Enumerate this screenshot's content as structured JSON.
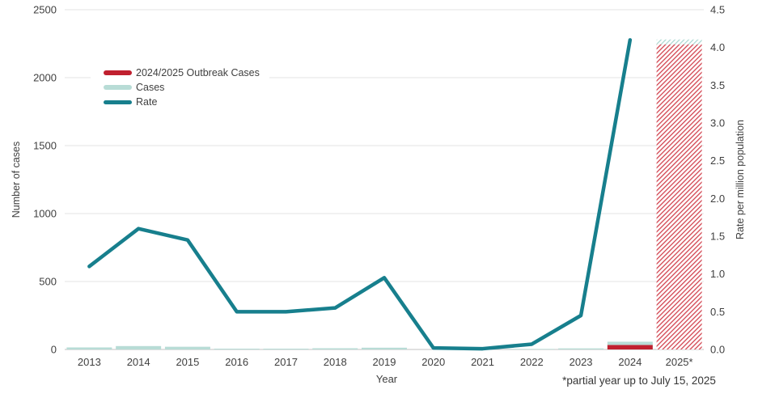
{
  "chart_data": {
    "type": "combo-bar-line",
    "x": [
      "2013",
      "2014",
      "2015",
      "2016",
      "2017",
      "2018",
      "2019",
      "2020",
      "2021",
      "2022",
      "2023",
      "2024",
      "2025*"
    ],
    "xlabel": "Year",
    "footnote": "*partial year up to July 15, 2025",
    "left_axis": {
      "title": "Number of cases",
      "ticks": [
        "0",
        "500",
        "1000",
        "1500",
        "2000",
        "2500"
      ],
      "min": 0,
      "max": 2500
    },
    "right_axis": {
      "title": "Rate per million population",
      "ticks": [
        "0.0",
        "0.5",
        "1.0",
        "1.5",
        "2.0",
        "2.5",
        "3.0",
        "3.5",
        "4.0",
        "4.5"
      ],
      "min": 0,
      "max": 4.5
    },
    "legend": [
      {
        "label": "2024/2025 Outbreak Cases",
        "color": "#c0202f",
        "type": "bar"
      },
      {
        "label": "Cases",
        "color": "#b8dcd6",
        "type": "bar"
      },
      {
        "label": "Rate",
        "color": "#177f8d",
        "type": "line"
      }
    ],
    "series": [
      {
        "name": "2024/2025 Outbreak Cases",
        "type": "bar",
        "axis": "left",
        "stack_order": 0,
        "values": [
          0,
          0,
          0,
          0,
          0,
          0,
          0,
          0,
          0,
          0,
          0,
          33,
          2245
        ]
      },
      {
        "name": "Cases",
        "type": "bar",
        "axis": "left",
        "stack_order": 1,
        "values": [
          15,
          25,
          20,
          6,
          6,
          9,
          13,
          2,
          1,
          4,
          8,
          24,
          36
        ]
      },
      {
        "name": "Rate",
        "type": "line",
        "axis": "right",
        "values": [
          1.1,
          1.6,
          1.45,
          0.5,
          0.5,
          0.55,
          0.95,
          0.02,
          0.01,
          0.07,
          0.45,
          4.1,
          null
        ]
      }
    ],
    "hatched_category": "2025*",
    "legend_position": "upper-left",
    "grid": "horizontal",
    "colors": {
      "outbreak_bar": "#c0202f",
      "cases_bar": "#b8dcd6",
      "rate_line": "#177f8d",
      "hatch_red": "#d2434f",
      "hatch_teal": "#a8d7d0",
      "gridline": "#e3e3e3",
      "axis_line": "#c2c2c2",
      "text": "#404040"
    }
  }
}
